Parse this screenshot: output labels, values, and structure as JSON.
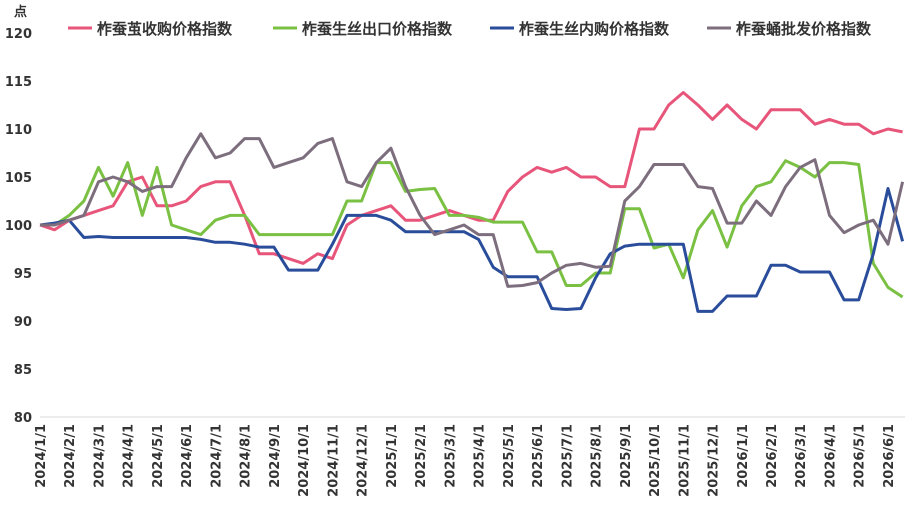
{
  "chart_data": {
    "type": "line",
    "y_label": "点",
    "categories": [
      "2024/1/1",
      null,
      "2024/2/1",
      null,
      "2024/3/1",
      null,
      "2024/4/1",
      null,
      "2024/5/1",
      null,
      "2024/6/1",
      null,
      "2024/7/1",
      null,
      "2024/8/1",
      null,
      "2024/9/1",
      null,
      "2024/10/1",
      null,
      "2024/11/1",
      null,
      "2024/12/1",
      null,
      "2025/1/1",
      null,
      "2025/2/1",
      null,
      "2025/3/1",
      null,
      "2025/4/1",
      null,
      "2025/5/1",
      null,
      "2025/6/1",
      null,
      "2025/7/1",
      null,
      "2025/8/1",
      null,
      "2025/9/1",
      null,
      "2025/10/1",
      null,
      "2025/11/1",
      null,
      "2025/12/1",
      null,
      "2026/1/1",
      null,
      "2026/2/1",
      null,
      "2026/3/1",
      null,
      "2026/4/1",
      null,
      "2026/5/1",
      null,
      "2026/6/1",
      null
    ],
    "series": [
      {
        "name": "柞蚕茧收购价格指数",
        "color": "#e8557a",
        "values": [
          100,
          99.5,
          100.5,
          101,
          101.5,
          102,
          104.5,
          105,
          102,
          102,
          102.5,
          104,
          104.5,
          104.5,
          101,
          97,
          97,
          96.5,
          96,
          97,
          96.5,
          100,
          101,
          101.5,
          102,
          100.5,
          100.5,
          101,
          101.5,
          101,
          100.5,
          100.5,
          103.5,
          105,
          106,
          105.5,
          106,
          105,
          105,
          104,
          104,
          110,
          110,
          112.5,
          113.8,
          112.5,
          111,
          112.5,
          111,
          110,
          112,
          112,
          112,
          110.5,
          111,
          110.5,
          110.5,
          109.5,
          110,
          109.7
        ]
      },
      {
        "name": "柞蚕生丝出口价格指数",
        "color": "#7ac143",
        "values": [
          100,
          100,
          101,
          102.5,
          106,
          103,
          106.5,
          101,
          106,
          100,
          99.5,
          99,
          100.5,
          101,
          101,
          99,
          99,
          99,
          99,
          99,
          99,
          102.5,
          102.5,
          106.5,
          106.5,
          103.5,
          103.7,
          103.8,
          101,
          101,
          100.8,
          100.3,
          100.3,
          100.3,
          97.2,
          97.2,
          93.7,
          93.7,
          95,
          95,
          101.7,
          101.7,
          97.6,
          98,
          94.5,
          99.5,
          101.5,
          97.7,
          102,
          104,
          104.5,
          106.7,
          106,
          105,
          106.5,
          106.5,
          106.3,
          96,
          93.5,
          92.5
        ]
      },
      {
        "name": "柞蚕生丝内购价格指数",
        "color": "#2a4d9b",
        "values": [
          100,
          100.2,
          100.5,
          98.7,
          98.8,
          98.7,
          98.7,
          98.7,
          98.7,
          98.7,
          98.7,
          98.5,
          98.2,
          98.2,
          98,
          97.7,
          97.7,
          95.3,
          95.3,
          95.3,
          98,
          101,
          101,
          101,
          100.5,
          99.3,
          99.3,
          99.3,
          99.3,
          99.3,
          98.5,
          95.6,
          94.6,
          94.6,
          94.6,
          91.3,
          91.2,
          91.3,
          94.5,
          97,
          97.8,
          98,
          98,
          98,
          98,
          91,
          91,
          92.6,
          92.6,
          92.6,
          95.8,
          95.8,
          95.1,
          95.1,
          95.1,
          92.2,
          92.2,
          97,
          103.8,
          98.3
        ]
      },
      {
        "name": "柞蚕蛹批发价格指数",
        "color": "#7d6e7e",
        "values": [
          100,
          100,
          100.5,
          101,
          104.5,
          105,
          104.5,
          103.5,
          104,
          104,
          107,
          109.5,
          107,
          107.5,
          109,
          109,
          106,
          106.5,
          107,
          108.5,
          109,
          104.5,
          104,
          106.5,
          108,
          104,
          101,
          99,
          99.5,
          100,
          99,
          99,
          93.6,
          93.7,
          94,
          95,
          95.8,
          96,
          95.6,
          95.7,
          102.5,
          104,
          106.3,
          106.3,
          106.3,
          104,
          103.8,
          100.2,
          100.2,
          102.5,
          101,
          104,
          106,
          106.8,
          101,
          99.2,
          100,
          100.5,
          98,
          104.5
        ]
      }
    ],
    "ylim": [
      80,
      120
    ],
    "yticks": [
      80,
      85,
      90,
      95,
      100,
      105,
      110,
      115,
      120
    ],
    "grid": false
  }
}
